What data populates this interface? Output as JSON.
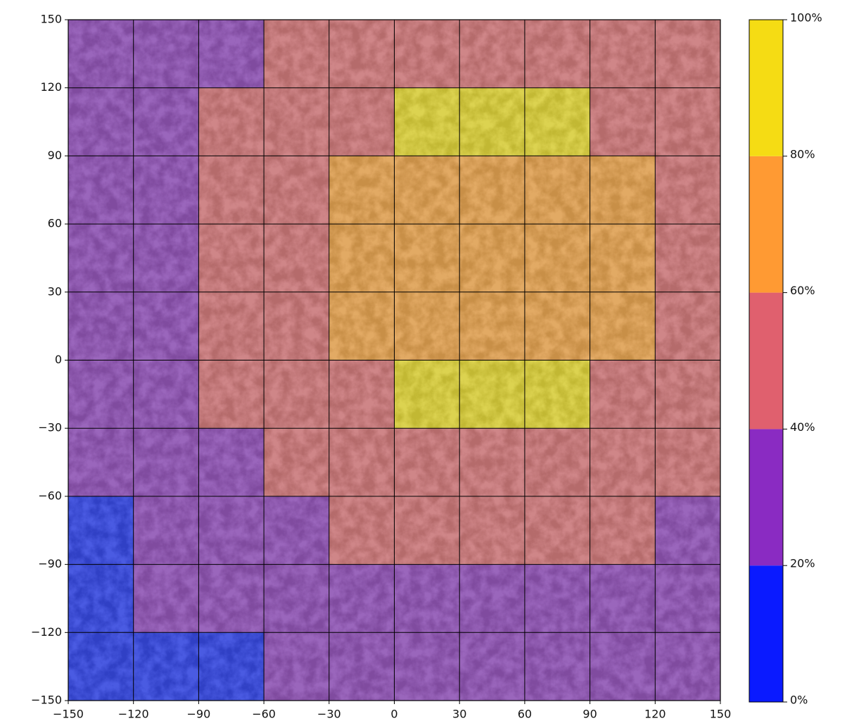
{
  "chart_data": {
    "type": "heatmap",
    "xlim": [
      -150,
      150
    ],
    "ylim": [
      -150,
      150
    ],
    "xticks": [
      {
        "value": -150,
        "label": "−150"
      },
      {
        "value": -120,
        "label": "−120"
      },
      {
        "value": -90,
        "label": "−90"
      },
      {
        "value": -60,
        "label": "−60"
      },
      {
        "value": -30,
        "label": "−30"
      },
      0,
      30,
      60,
      90,
      120,
      150
    ],
    "yticks": [
      {
        "value": -150,
        "label": "−150"
      },
      {
        "value": -120,
        "label": "−120"
      },
      {
        "value": -90,
        "label": "−90"
      },
      {
        "value": -60,
        "label": "−60"
      },
      {
        "value": -30,
        "label": "−30"
      },
      0,
      30,
      60,
      90,
      120,
      150
    ],
    "grid": true,
    "z_rows_from_top": true,
    "z": [
      [
        30,
        30,
        30,
        50,
        50,
        50,
        50,
        50,
        50,
        50
      ],
      [
        30,
        30,
        50,
        50,
        50,
        90,
        90,
        90,
        50,
        50
      ],
      [
        30,
        30,
        50,
        50,
        70,
        70,
        70,
        70,
        70,
        50
      ],
      [
        30,
        30,
        50,
        50,
        70,
        70,
        70,
        70,
        70,
        50
      ],
      [
        30,
        30,
        50,
        50,
        70,
        70,
        70,
        70,
        70,
        50
      ],
      [
        30,
        30,
        50,
        50,
        50,
        90,
        90,
        90,
        50,
        50
      ],
      [
        30,
        30,
        30,
        50,
        50,
        50,
        50,
        50,
        50,
        50
      ],
      [
        10,
        30,
        30,
        30,
        50,
        50,
        50,
        50,
        50,
        30
      ],
      [
        10,
        30,
        30,
        30,
        30,
        30,
        30,
        30,
        30,
        30
      ],
      [
        10,
        10,
        10,
        30,
        30,
        30,
        30,
        30,
        30,
        30
      ]
    ],
    "colorbar": {
      "levels": [
        0,
        20,
        40,
        60,
        80,
        100
      ],
      "colors": [
        "#0a1aff",
        "#8a2bc2",
        "#e0606e",
        "#ff9a33",
        "#f5dc14"
      ],
      "ticks": [
        {
          "value": 0,
          "label": "0%"
        },
        {
          "value": 20,
          "label": "20%"
        },
        {
          "value": 40,
          "label": "40%"
        },
        {
          "value": 60,
          "label": "60%"
        },
        {
          "value": 80,
          "label": "80%"
        },
        {
          "value": 100,
          "label": "100%"
        }
      ]
    }
  }
}
